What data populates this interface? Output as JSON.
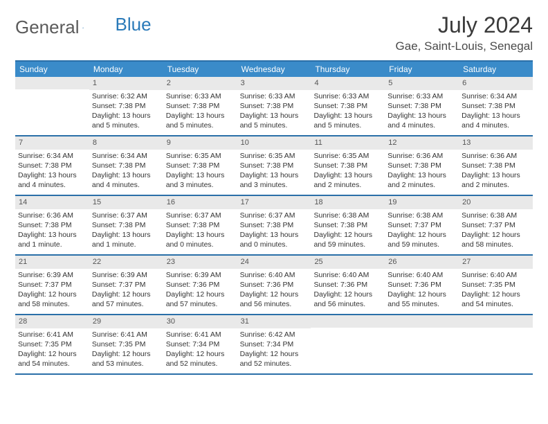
{
  "brand": {
    "part1": "General",
    "part2": "Blue"
  },
  "title": "July 2024",
  "location": "Gae, Saint-Louis, Senegal",
  "dow": [
    "Sunday",
    "Monday",
    "Tuesday",
    "Wednesday",
    "Thursday",
    "Friday",
    "Saturday"
  ],
  "colors": {
    "header_bar": "#3a8bc9",
    "rule": "#2a6fa8",
    "daynum_bg": "#e9e9e9"
  },
  "weeks": [
    [
      {
        "n": "",
        "lines": []
      },
      {
        "n": "1",
        "lines": [
          "Sunrise: 6:32 AM",
          "Sunset: 7:38 PM",
          "Daylight: 13 hours",
          "and 5 minutes."
        ]
      },
      {
        "n": "2",
        "lines": [
          "Sunrise: 6:33 AM",
          "Sunset: 7:38 PM",
          "Daylight: 13 hours",
          "and 5 minutes."
        ]
      },
      {
        "n": "3",
        "lines": [
          "Sunrise: 6:33 AM",
          "Sunset: 7:38 PM",
          "Daylight: 13 hours",
          "and 5 minutes."
        ]
      },
      {
        "n": "4",
        "lines": [
          "Sunrise: 6:33 AM",
          "Sunset: 7:38 PM",
          "Daylight: 13 hours",
          "and 5 minutes."
        ]
      },
      {
        "n": "5",
        "lines": [
          "Sunrise: 6:33 AM",
          "Sunset: 7:38 PM",
          "Daylight: 13 hours",
          "and 4 minutes."
        ]
      },
      {
        "n": "6",
        "lines": [
          "Sunrise: 6:34 AM",
          "Sunset: 7:38 PM",
          "Daylight: 13 hours",
          "and 4 minutes."
        ]
      }
    ],
    [
      {
        "n": "7",
        "lines": [
          "Sunrise: 6:34 AM",
          "Sunset: 7:38 PM",
          "Daylight: 13 hours",
          "and 4 minutes."
        ]
      },
      {
        "n": "8",
        "lines": [
          "Sunrise: 6:34 AM",
          "Sunset: 7:38 PM",
          "Daylight: 13 hours",
          "and 4 minutes."
        ]
      },
      {
        "n": "9",
        "lines": [
          "Sunrise: 6:35 AM",
          "Sunset: 7:38 PM",
          "Daylight: 13 hours",
          "and 3 minutes."
        ]
      },
      {
        "n": "10",
        "lines": [
          "Sunrise: 6:35 AM",
          "Sunset: 7:38 PM",
          "Daylight: 13 hours",
          "and 3 minutes."
        ]
      },
      {
        "n": "11",
        "lines": [
          "Sunrise: 6:35 AM",
          "Sunset: 7:38 PM",
          "Daylight: 13 hours",
          "and 2 minutes."
        ]
      },
      {
        "n": "12",
        "lines": [
          "Sunrise: 6:36 AM",
          "Sunset: 7:38 PM",
          "Daylight: 13 hours",
          "and 2 minutes."
        ]
      },
      {
        "n": "13",
        "lines": [
          "Sunrise: 6:36 AM",
          "Sunset: 7:38 PM",
          "Daylight: 13 hours",
          "and 2 minutes."
        ]
      }
    ],
    [
      {
        "n": "14",
        "lines": [
          "Sunrise: 6:36 AM",
          "Sunset: 7:38 PM",
          "Daylight: 13 hours",
          "and 1 minute."
        ]
      },
      {
        "n": "15",
        "lines": [
          "Sunrise: 6:37 AM",
          "Sunset: 7:38 PM",
          "Daylight: 13 hours",
          "and 1 minute."
        ]
      },
      {
        "n": "16",
        "lines": [
          "Sunrise: 6:37 AM",
          "Sunset: 7:38 PM",
          "Daylight: 13 hours",
          "and 0 minutes."
        ]
      },
      {
        "n": "17",
        "lines": [
          "Sunrise: 6:37 AM",
          "Sunset: 7:38 PM",
          "Daylight: 13 hours",
          "and 0 minutes."
        ]
      },
      {
        "n": "18",
        "lines": [
          "Sunrise: 6:38 AM",
          "Sunset: 7:38 PM",
          "Daylight: 12 hours",
          "and 59 minutes."
        ]
      },
      {
        "n": "19",
        "lines": [
          "Sunrise: 6:38 AM",
          "Sunset: 7:37 PM",
          "Daylight: 12 hours",
          "and 59 minutes."
        ]
      },
      {
        "n": "20",
        "lines": [
          "Sunrise: 6:38 AM",
          "Sunset: 7:37 PM",
          "Daylight: 12 hours",
          "and 58 minutes."
        ]
      }
    ],
    [
      {
        "n": "21",
        "lines": [
          "Sunrise: 6:39 AM",
          "Sunset: 7:37 PM",
          "Daylight: 12 hours",
          "and 58 minutes."
        ]
      },
      {
        "n": "22",
        "lines": [
          "Sunrise: 6:39 AM",
          "Sunset: 7:37 PM",
          "Daylight: 12 hours",
          "and 57 minutes."
        ]
      },
      {
        "n": "23",
        "lines": [
          "Sunrise: 6:39 AM",
          "Sunset: 7:36 PM",
          "Daylight: 12 hours",
          "and 57 minutes."
        ]
      },
      {
        "n": "24",
        "lines": [
          "Sunrise: 6:40 AM",
          "Sunset: 7:36 PM",
          "Daylight: 12 hours",
          "and 56 minutes."
        ]
      },
      {
        "n": "25",
        "lines": [
          "Sunrise: 6:40 AM",
          "Sunset: 7:36 PM",
          "Daylight: 12 hours",
          "and 56 minutes."
        ]
      },
      {
        "n": "26",
        "lines": [
          "Sunrise: 6:40 AM",
          "Sunset: 7:36 PM",
          "Daylight: 12 hours",
          "and 55 minutes."
        ]
      },
      {
        "n": "27",
        "lines": [
          "Sunrise: 6:40 AM",
          "Sunset: 7:35 PM",
          "Daylight: 12 hours",
          "and 54 minutes."
        ]
      }
    ],
    [
      {
        "n": "28",
        "lines": [
          "Sunrise: 6:41 AM",
          "Sunset: 7:35 PM",
          "Daylight: 12 hours",
          "and 54 minutes."
        ]
      },
      {
        "n": "29",
        "lines": [
          "Sunrise: 6:41 AM",
          "Sunset: 7:35 PM",
          "Daylight: 12 hours",
          "and 53 minutes."
        ]
      },
      {
        "n": "30",
        "lines": [
          "Sunrise: 6:41 AM",
          "Sunset: 7:34 PM",
          "Daylight: 12 hours",
          "and 52 minutes."
        ]
      },
      {
        "n": "31",
        "lines": [
          "Sunrise: 6:42 AM",
          "Sunset: 7:34 PM",
          "Daylight: 12 hours",
          "and 52 minutes."
        ]
      },
      {
        "n": "",
        "lines": []
      },
      {
        "n": "",
        "lines": []
      },
      {
        "n": "",
        "lines": []
      }
    ]
  ]
}
